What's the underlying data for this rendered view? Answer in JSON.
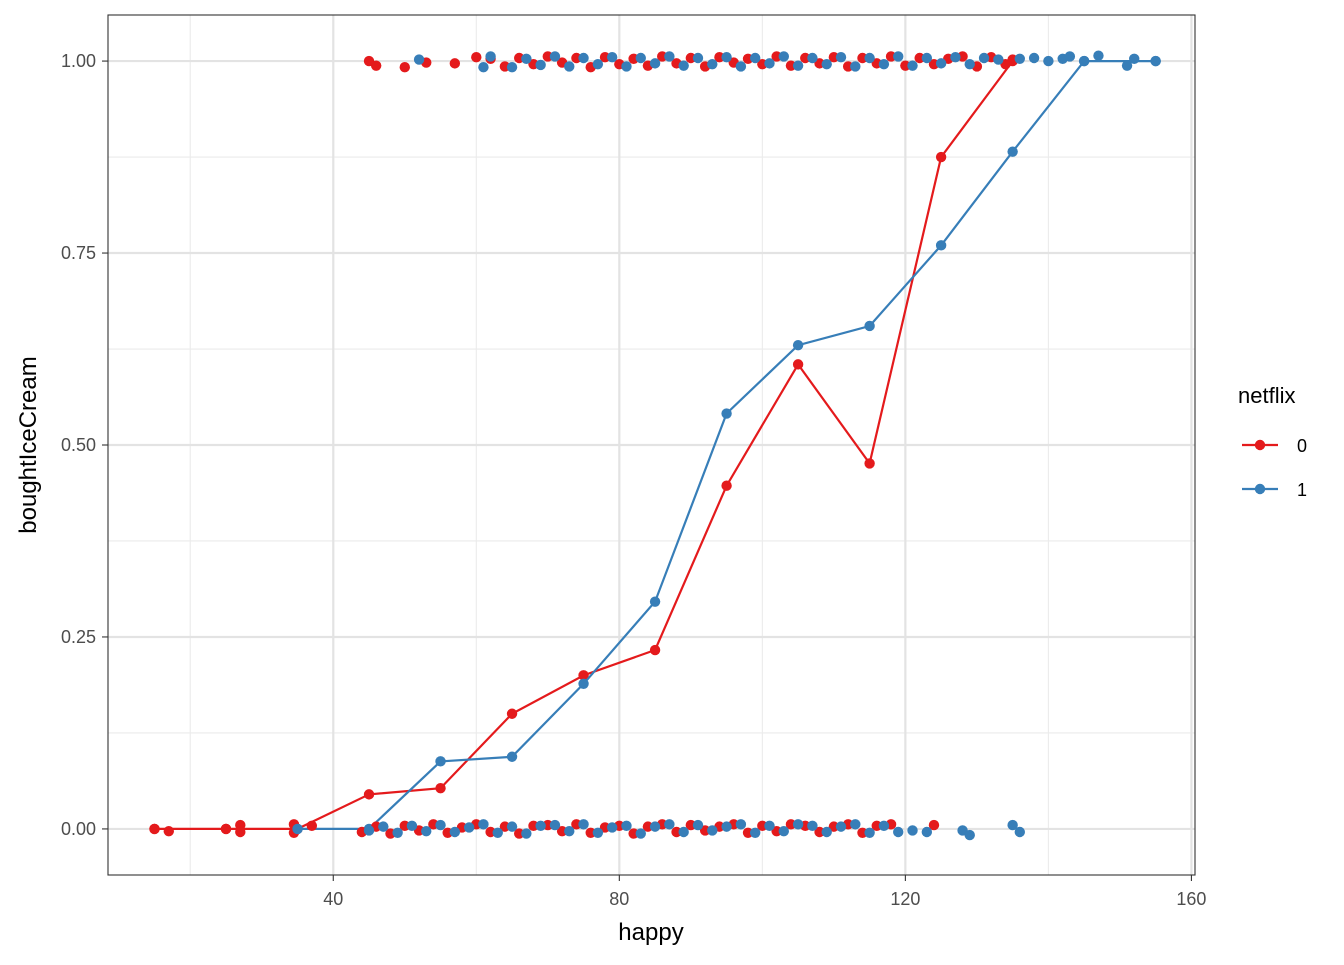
{
  "chart_data": {
    "type": "scatter",
    "xlabel": "happy",
    "ylabel": "boughtIceCream",
    "xlim": [
      8.5,
      160.5
    ],
    "ylim": [
      -0.06,
      1.06
    ],
    "x_ticks": [
      40,
      80,
      120,
      160
    ],
    "y_ticks": [
      0.0,
      0.25,
      0.5,
      0.75,
      1.0
    ],
    "x_tick_labels": [
      "40",
      "80",
      "120",
      "160"
    ],
    "y_tick_labels": [
      "0.00",
      "0.25",
      "0.50",
      "0.75",
      "1.00"
    ],
    "grid": true,
    "legend": {
      "title": "netflix",
      "position": "right",
      "entries": [
        "0",
        "1"
      ]
    },
    "series": [
      {
        "name": "0",
        "color": "#E41A1C",
        "line": [
          [
            15,
            0
          ],
          [
            25,
            0
          ],
          [
            35,
            0
          ],
          [
            45,
            0.045
          ],
          [
            55,
            0.053
          ],
          [
            65,
            0.15
          ],
          [
            75,
            0.2
          ],
          [
            85,
            0.233
          ],
          [
            95,
            0.447
          ],
          [
            105,
            0.605
          ],
          [
            115,
            0.476
          ],
          [
            125,
            0.875
          ],
          [
            135,
            1.0
          ]
        ],
        "points": [
          [
            15,
            0
          ],
          [
            17,
            -0.003
          ],
          [
            25,
            0
          ],
          [
            27,
            0.005
          ],
          [
            27,
            -0.004
          ],
          [
            34.5,
            0.006
          ],
          [
            34.5,
            -0.005
          ],
          [
            37,
            0.004
          ],
          [
            44,
            -0.004
          ],
          [
            46,
            0.003
          ],
          [
            48,
            -0.006
          ],
          [
            50,
            0.004
          ],
          [
            52,
            -0.002
          ],
          [
            54,
            0.006
          ],
          [
            56,
            -0.005
          ],
          [
            58,
            0.002
          ],
          [
            60,
            0.006
          ],
          [
            62,
            -0.004
          ],
          [
            64,
            0.003
          ],
          [
            66,
            -0.006
          ],
          [
            68,
            0.004
          ],
          [
            70,
            0.005
          ],
          [
            72,
            -0.003
          ],
          [
            74,
            0.006
          ],
          [
            76,
            -0.005
          ],
          [
            78,
            0.002
          ],
          [
            80,
            0.004
          ],
          [
            82,
            -0.006
          ],
          [
            84,
            0.003
          ],
          [
            86,
            0.006
          ],
          [
            88,
            -0.004
          ],
          [
            90,
            0.005
          ],
          [
            92,
            -0.002
          ],
          [
            94,
            0.003
          ],
          [
            96,
            0.006
          ],
          [
            98,
            -0.005
          ],
          [
            100,
            0.004
          ],
          [
            102,
            -0.003
          ],
          [
            104,
            0.006
          ],
          [
            106,
            0.004
          ],
          [
            108,
            -0.004
          ],
          [
            110,
            0.003
          ],
          [
            112,
            0.006
          ],
          [
            114,
            -0.005
          ],
          [
            116,
            0.004
          ],
          [
            118,
            0.006
          ],
          [
            124,
            0.005
          ],
          [
            45,
            1.0
          ],
          [
            46,
            0.994
          ],
          [
            50,
            0.992
          ],
          [
            53,
            0.998
          ],
          [
            57,
            0.997
          ],
          [
            60,
            1.005
          ],
          [
            62,
            1.003
          ],
          [
            64,
            0.993
          ],
          [
            66,
            1.004
          ],
          [
            68,
            0.996
          ],
          [
            70,
            1.006
          ],
          [
            72,
            0.998
          ],
          [
            74,
            1.004
          ],
          [
            76,
            0.992
          ],
          [
            78,
            1.005
          ],
          [
            80,
            0.996
          ],
          [
            82,
            1.003
          ],
          [
            84,
            0.994
          ],
          [
            86,
            1.006
          ],
          [
            88,
            0.997
          ],
          [
            90,
            1.004
          ],
          [
            92,
            0.993
          ],
          [
            94,
            1.005
          ],
          [
            96,
            0.998
          ],
          [
            98,
            1.003
          ],
          [
            100,
            0.996
          ],
          [
            102,
            1.006
          ],
          [
            104,
            0.994
          ],
          [
            106,
            1.004
          ],
          [
            108,
            0.997
          ],
          [
            110,
            1.005
          ],
          [
            112,
            0.993
          ],
          [
            114,
            1.004
          ],
          [
            116,
            0.997
          ],
          [
            118,
            1.006
          ],
          [
            120,
            0.994
          ],
          [
            122,
            1.004
          ],
          [
            124,
            0.996
          ],
          [
            126,
            1.003
          ],
          [
            128,
            1.006
          ],
          [
            130,
            0.993
          ],
          [
            132,
            1.005
          ],
          [
            134,
            0.996
          ],
          [
            135,
            1.002
          ]
        ]
      },
      {
        "name": "1",
        "color": "#377EB8",
        "line": [
          [
            35,
            0
          ],
          [
            45,
            0
          ],
          [
            55,
            0.088
          ],
          [
            65,
            0.094
          ],
          [
            75,
            0.189
          ],
          [
            85,
            0.296
          ],
          [
            95,
            0.541
          ],
          [
            105,
            0.63
          ],
          [
            115,
            0.655
          ],
          [
            125,
            0.76
          ],
          [
            135,
            0.882
          ],
          [
            145,
            1.0
          ],
          [
            155,
            1.0
          ]
        ],
        "points": [
          [
            35,
            0
          ],
          [
            45,
            -0.002
          ],
          [
            47,
            0.003
          ],
          [
            49,
            -0.005
          ],
          [
            51,
            0.004
          ],
          [
            53,
            -0.003
          ],
          [
            55,
            0.005
          ],
          [
            57,
            -0.004
          ],
          [
            59,
            0.002
          ],
          [
            61,
            0.006
          ],
          [
            63,
            -0.005
          ],
          [
            65,
            0.003
          ],
          [
            67,
            -0.006
          ],
          [
            69,
            0.004
          ],
          [
            71,
            0.005
          ],
          [
            73,
            -0.003
          ],
          [
            75,
            0.006
          ],
          [
            77,
            -0.005
          ],
          [
            79,
            0.002
          ],
          [
            81,
            0.004
          ],
          [
            83,
            -0.006
          ],
          [
            85,
            0.003
          ],
          [
            87,
            0.006
          ],
          [
            89,
            -0.004
          ],
          [
            91,
            0.005
          ],
          [
            93,
            -0.002
          ],
          [
            95,
            0.003
          ],
          [
            97,
            0.006
          ],
          [
            99,
            -0.005
          ],
          [
            101,
            0.004
          ],
          [
            103,
            -0.003
          ],
          [
            105,
            0.006
          ],
          [
            107,
            0.004
          ],
          [
            109,
            -0.004
          ],
          [
            111,
            0.003
          ],
          [
            113,
            0.006
          ],
          [
            115,
            -0.005
          ],
          [
            117,
            0.004
          ],
          [
            119,
            -0.004
          ],
          [
            121,
            -0.002
          ],
          [
            123,
            -0.004
          ],
          [
            128,
            -0.002
          ],
          [
            129,
            -0.008
          ],
          [
            135,
            0.005
          ],
          [
            136,
            -0.004
          ],
          [
            52,
            1.002
          ],
          [
            61,
            0.992
          ],
          [
            62,
            1.006
          ],
          [
            65,
            0.992
          ],
          [
            67,
            1.003
          ],
          [
            69,
            0.995
          ],
          [
            71,
            1.006
          ],
          [
            73,
            0.993
          ],
          [
            75,
            1.004
          ],
          [
            77,
            0.996
          ],
          [
            79,
            1.005
          ],
          [
            81,
            0.993
          ],
          [
            83,
            1.004
          ],
          [
            85,
            0.997
          ],
          [
            87,
            1.006
          ],
          [
            89,
            0.994
          ],
          [
            91,
            1.004
          ],
          [
            93,
            0.996
          ],
          [
            95,
            1.005
          ],
          [
            97,
            0.993
          ],
          [
            99,
            1.004
          ],
          [
            101,
            0.997
          ],
          [
            103,
            1.006
          ],
          [
            105,
            0.994
          ],
          [
            107,
            1.004
          ],
          [
            109,
            0.996
          ],
          [
            111,
            1.005
          ],
          [
            113,
            0.993
          ],
          [
            115,
            1.004
          ],
          [
            117,
            0.996
          ],
          [
            119,
            1.006
          ],
          [
            121,
            0.994
          ],
          [
            123,
            1.004
          ],
          [
            125,
            0.997
          ],
          [
            127,
            1.005
          ],
          [
            129,
            0.996
          ],
          [
            131,
            1.004
          ],
          [
            133,
            1.002
          ],
          [
            136,
            1.003
          ],
          [
            138,
            1.004
          ],
          [
            140,
            1.0
          ],
          [
            142,
            1.003
          ],
          [
            143,
            1.006
          ],
          [
            145,
            1.0
          ],
          [
            147,
            1.007
          ],
          [
            151,
            0.994
          ],
          [
            152,
            1.003
          ],
          [
            155,
            1.0
          ]
        ]
      }
    ]
  }
}
